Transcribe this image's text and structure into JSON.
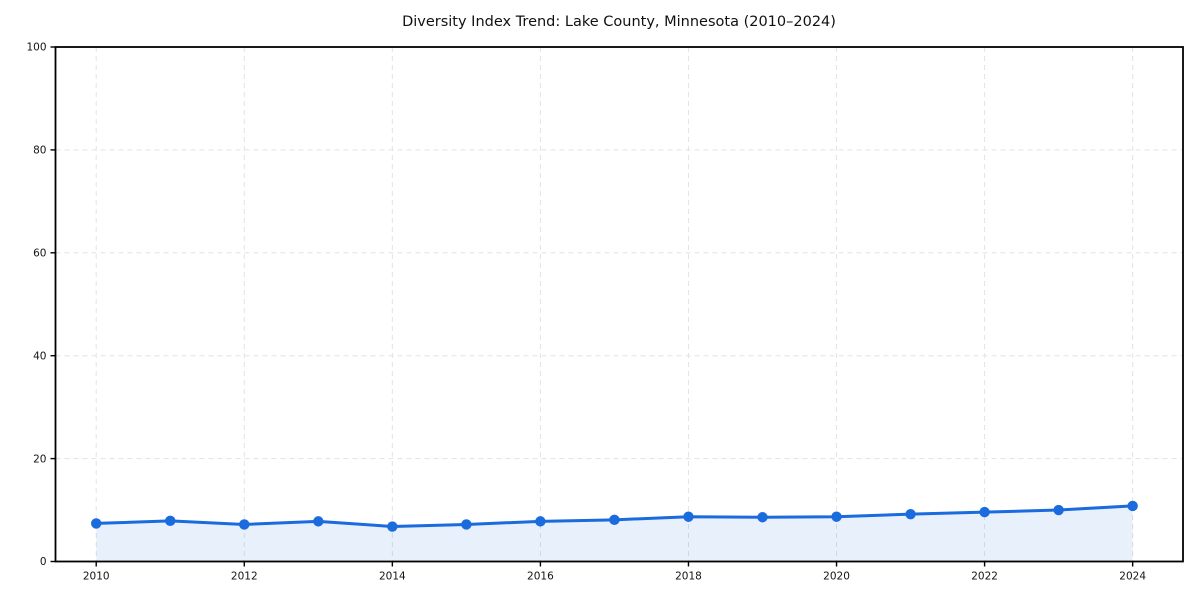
{
  "chart_data": {
    "type": "line",
    "title": "Diversity Index Trend: Lake County, Minnesota (2010–2024)",
    "xlabel": "",
    "ylabel": "",
    "x": [
      2010,
      2011,
      2012,
      2013,
      2014,
      2015,
      2016,
      2017,
      2018,
      2019,
      2020,
      2021,
      2022,
      2023,
      2024
    ],
    "series": [
      {
        "name": "Diversity Index",
        "values": [
          7.4,
          7.9,
          7.2,
          7.8,
          6.8,
          7.2,
          7.8,
          8.1,
          8.7,
          8.6,
          8.7,
          9.2,
          9.6,
          10.0,
          10.8
        ]
      }
    ],
    "xlim": [
      2009.45,
      2024.68
    ],
    "ylim": [
      0,
      100
    ],
    "xticks": [
      2010,
      2012,
      2014,
      2016,
      2018,
      2020,
      2022,
      2024
    ],
    "yticks": [
      0,
      20,
      40,
      60,
      80,
      100
    ],
    "grid": "on",
    "grid_style": "dashed",
    "legend": "none",
    "marker": "circle",
    "area_fill": "under-line",
    "colors": {
      "line": "#1a6bdd",
      "marker": "#1a6bdd",
      "fill": "#1a6bdd",
      "fill_opacity": "0.10",
      "grid": "#e3e3e3",
      "spine": "#000000",
      "tick_text": "#151515",
      "background": "#ffffff"
    }
  }
}
